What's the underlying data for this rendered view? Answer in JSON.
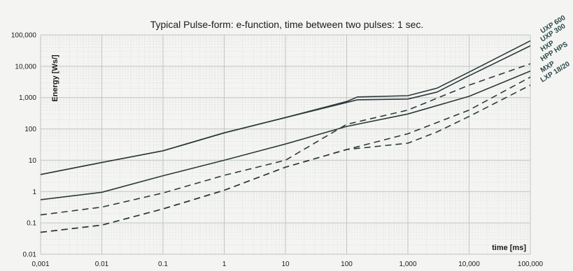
{
  "chart_data": {
    "type": "line",
    "title": "Typical Pulse-form: e-function, time between two pulses: 1 sec.",
    "xlabel": "time [ms]",
    "ylabel": "Energy [Ws/]",
    "xscale": "log",
    "yscale": "log",
    "xlim": [
      0.001,
      100000
    ],
    "ylim": [
      0.01,
      100000
    ],
    "grid": true,
    "x_ticks": [
      "0,001",
      "0.01",
      "0.1",
      "1",
      "10",
      "100",
      "1,000",
      "10,000",
      "100,000"
    ],
    "y_ticks": [
      "0.01",
      "0.1",
      "1",
      "10",
      "100",
      "1,000",
      "10,000",
      "100,000"
    ],
    "series": [
      {
        "name": "UXP 600",
        "style": "solid",
        "x": [
          0.001,
          0.01,
          0.1,
          1,
          10,
          100,
          150,
          1000,
          3000,
          10000,
          100000
        ],
        "y": [
          3.5,
          8.5,
          20,
          75,
          230,
          750,
          1050,
          1150,
          2000,
          6500,
          65000
        ]
      },
      {
        "name": "UXP 300",
        "style": "solid",
        "x": [
          0.001,
          0.01,
          0.1,
          1,
          10,
          100,
          150,
          1000,
          3000,
          10000,
          100000
        ],
        "y": [
          3.5,
          8.5,
          20,
          75,
          230,
          700,
          850,
          900,
          1500,
          5000,
          45000
        ]
      },
      {
        "name": "HXP",
        "style": "solid",
        "x": [
          0.001,
          0.01,
          0.1,
          1,
          10,
          100,
          1000,
          10000,
          100000
        ],
        "y": [
          0.55,
          0.95,
          3.2,
          10,
          33,
          120,
          300,
          1100,
          7000
        ]
      },
      {
        "name": "HPP HPS",
        "style": "dashed",
        "x": [
          0.001,
          0.01,
          0.1,
          1,
          10,
          100,
          1000,
          10000,
          100000
        ],
        "y": [
          0.18,
          0.32,
          0.9,
          3.3,
          10,
          140,
          400,
          2500,
          12000
        ]
      },
      {
        "name": "MXP",
        "style": "dashed",
        "x": [
          0.001,
          0.01,
          0.1,
          1,
          10,
          100,
          1000,
          10000,
          100000
        ],
        "y": [
          0.05,
          0.085,
          0.28,
          1.1,
          6,
          22,
          70,
          400,
          4500
        ]
      },
      {
        "name": "LXP 18/20",
        "style": "dashed",
        "x": [
          0.001,
          0.01,
          0.1,
          1,
          10,
          100,
          1000,
          3000,
          10000,
          100000
        ],
        "y": [
          0.05,
          0.085,
          0.28,
          1.1,
          6,
          22,
          35,
          80,
          250,
          2500
        ]
      }
    ],
    "colors": {
      "line": "#2b3a3a",
      "grid": "#bfc3c0",
      "background": "#f4f5f3",
      "label": "#2b4a4a"
    }
  }
}
